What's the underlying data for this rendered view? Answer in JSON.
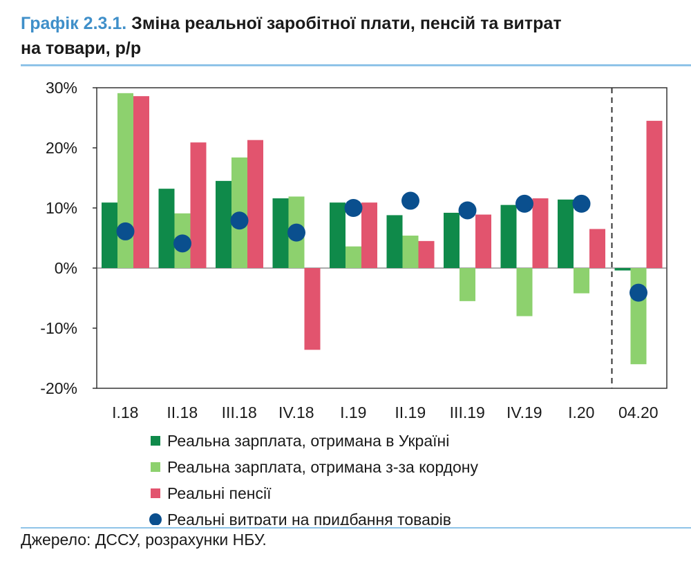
{
  "title": {
    "prefix": "Графік 2.3.1.",
    "line1_rest": " Зміна реальної заробітної плати, пенсій та витрат",
    "line2": "на товари, р/р"
  },
  "source": "Джерело: ДССУ, розрахунки НБУ.",
  "chart_data": {
    "type": "bar",
    "categories": [
      "I.18",
      "II.18",
      "III.18",
      "IV.18",
      "I.19",
      "II.19",
      "III.19",
      "IV.19",
      "I.20",
      "04.20"
    ],
    "yticks": [
      "30%",
      "20%",
      "10%",
      "0%",
      "-10%",
      "-20%"
    ],
    "ylim": [
      -20,
      30
    ],
    "series": [
      {
        "name": "Реальна зарплата, отримана в Україні",
        "kind": "bar",
        "color": "#0f8a4a",
        "values": [
          10.9,
          13.2,
          14.5,
          11.6,
          10.9,
          8.8,
          9.2,
          10.5,
          11.4,
          -0.4
        ]
      },
      {
        "name": "Реальна зарплата, отримана з-за кордону",
        "kind": "bar",
        "color": "#8dd16e",
        "values": [
          29.1,
          9.1,
          18.4,
          11.9,
          3.6,
          5.4,
          -5.5,
          -8.0,
          -4.2,
          -16.0
        ]
      },
      {
        "name": "Реальні пенсії",
        "kind": "bar",
        "color": "#e2546e",
        "values": [
          28.6,
          20.9,
          21.3,
          -13.6,
          10.9,
          4.5,
          8.9,
          11.6,
          6.5,
          24.5
        ]
      },
      {
        "name": "Реальні витрати на придбання товарів",
        "kind": "point",
        "color": "#0a4f8e",
        "values": [
          6.1,
          4.1,
          7.9,
          5.9,
          10.0,
          11.2,
          9.6,
          10.7,
          10.7,
          -4.1
        ]
      }
    ],
    "grid": false,
    "divider_before": "04.20",
    "legend_placement": "bottom"
  }
}
